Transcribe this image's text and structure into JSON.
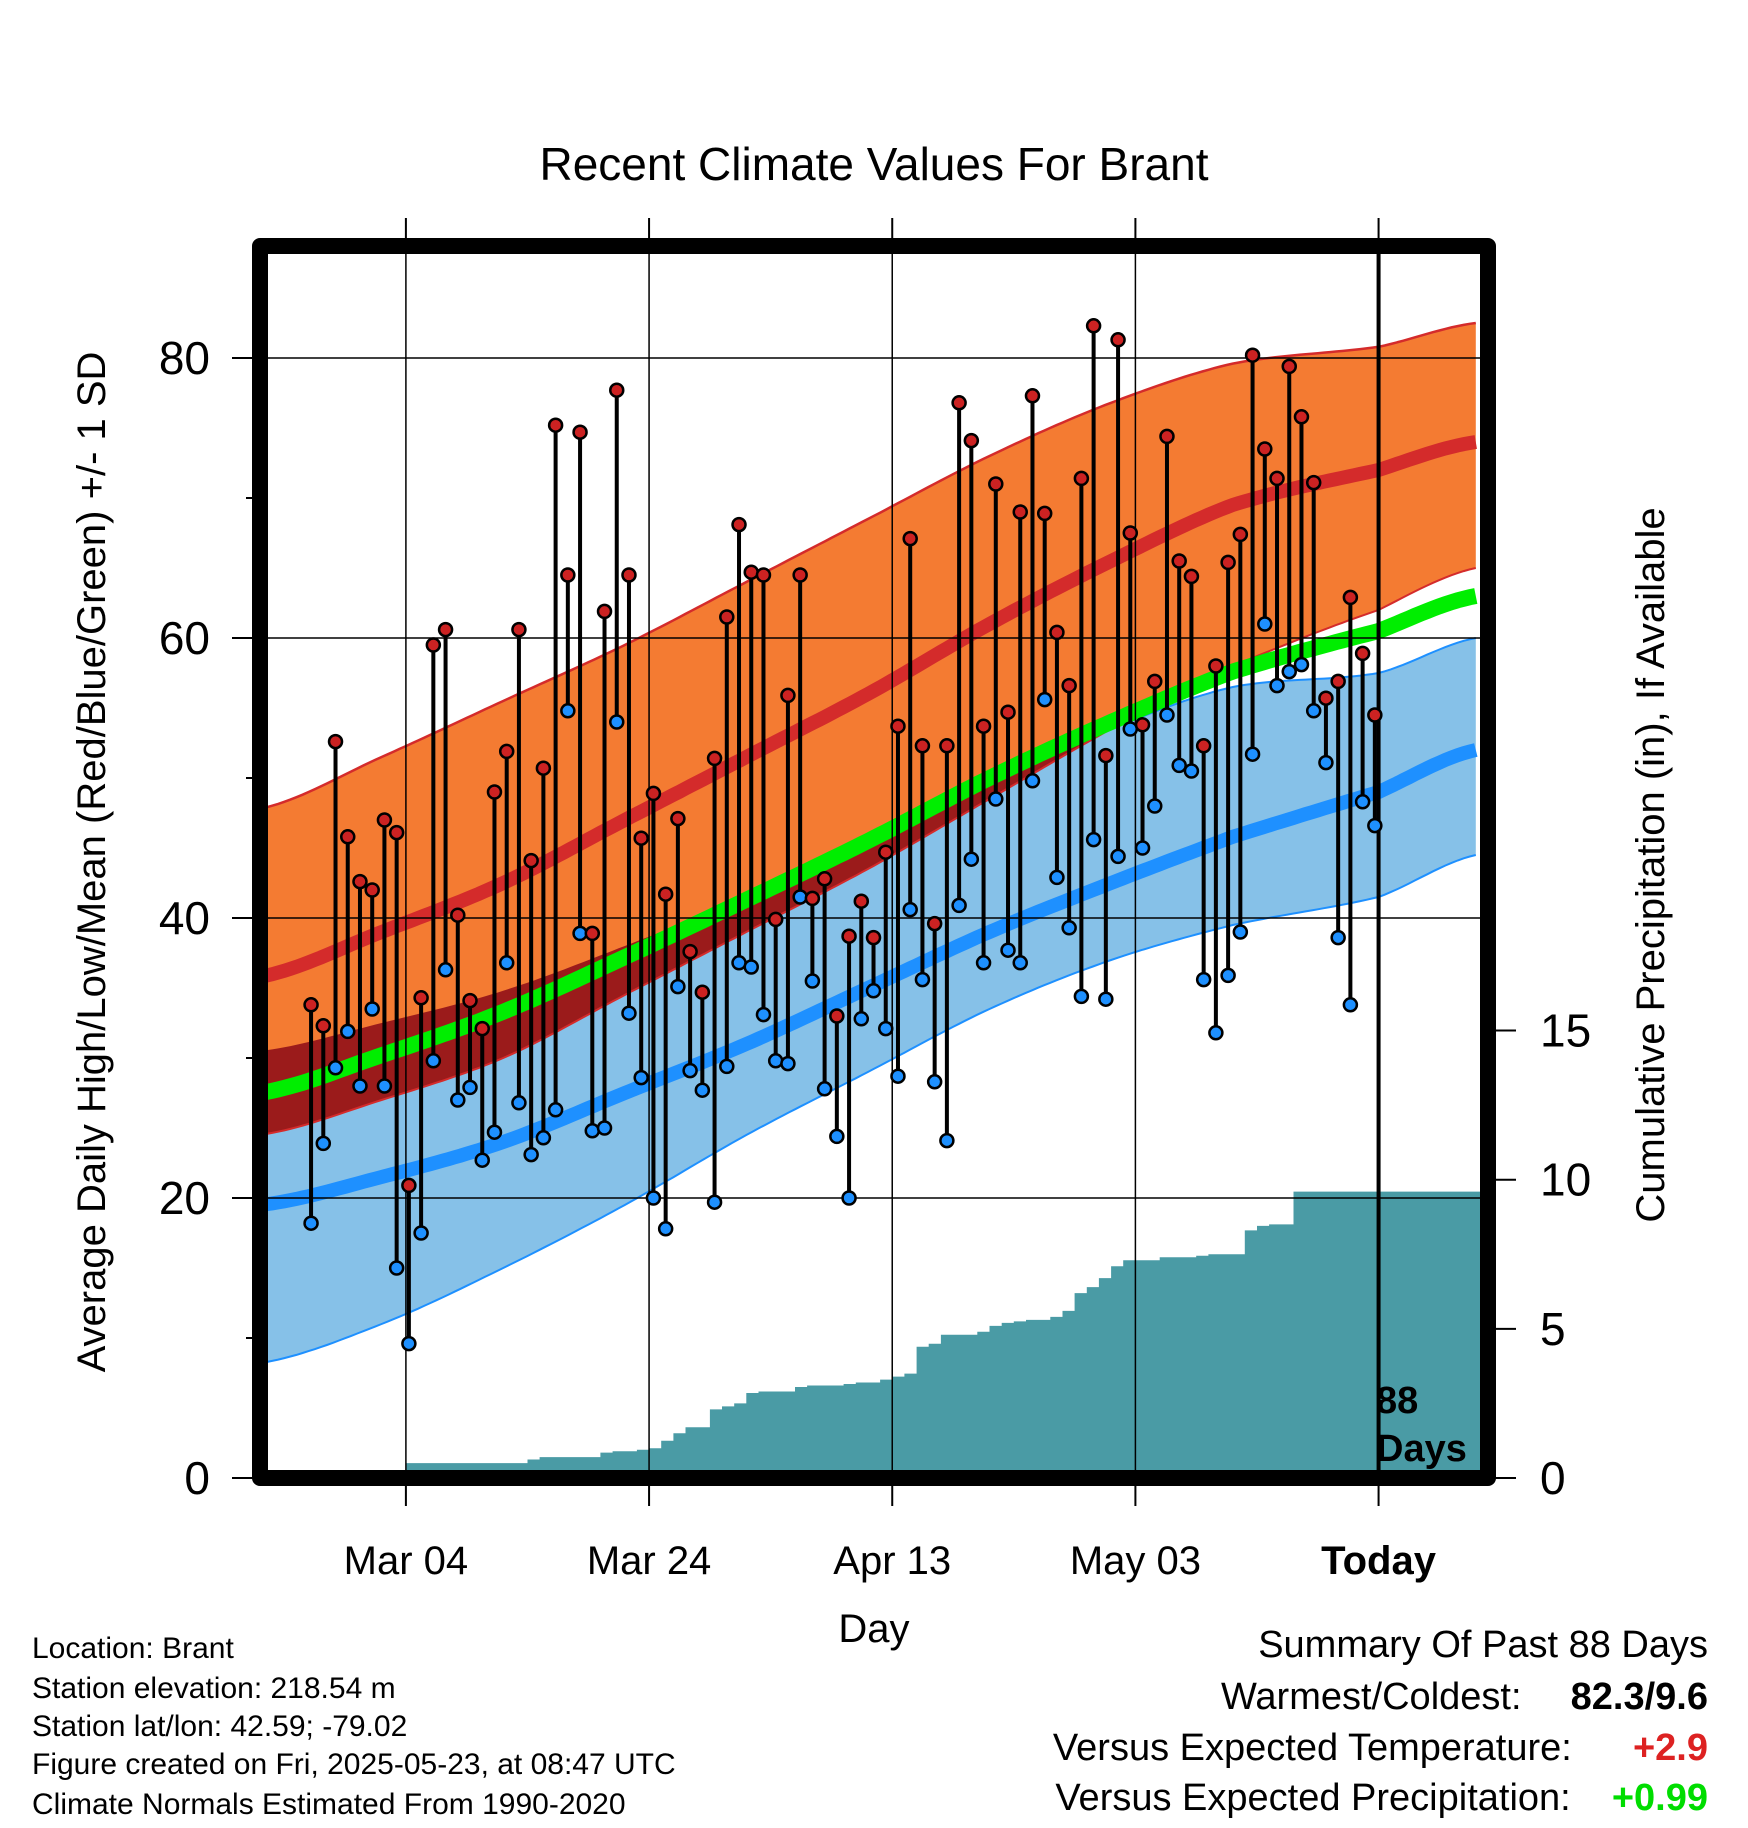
{
  "chart_data": {
    "type": "line",
    "title": "Recent Climate Values For Brant",
    "xlabel": "Day",
    "ylabel": "Average Daily High/Low/Mean (Red/Blue/Green) +/- 1 SD",
    "y2label": "Cumulative Precipitation (in), If Available",
    "x_tick_labels": [
      "Mar 04",
      "Mar 24",
      "Apr 13",
      "May 03",
      "Today"
    ],
    "x_tick_days": [
      12,
      32,
      52,
      72,
      92
    ],
    "y_ticks": [
      0,
      20,
      40,
      60,
      80
    ],
    "y2_ticks": [
      0,
      5,
      10,
      15
    ],
    "ylim": [
      0,
      88
    ],
    "y2lim": [
      0,
      41.3
    ],
    "xlim": [
      0,
      101
    ],
    "today_day": 92,
    "today_label_value": "88",
    "today_label_unit": "Days",
    "grid": true,
    "colors": {
      "high_band": "#f47b32",
      "high_mean": "#d42b2b",
      "high_band_edge": "#d42b2b",
      "low_band": "#86c1e8",
      "low_mean": "#1e90ff",
      "low_band_edge": "#1e90ff",
      "mean": "#00ee00",
      "overlap": "#9b1b1b",
      "precip": "#4a9ba5",
      "high_point": "#cc2222",
      "low_point": "#1e90ff"
    },
    "normal_days": [
      0,
      10,
      20,
      30,
      40,
      50,
      60,
      70,
      80,
      92,
      100
    ],
    "normal_high_mean": [
      35.8,
      39,
      42.5,
      47,
      51.5,
      56,
      61,
      65.5,
      69.5,
      72,
      74
    ],
    "normal_high_upper": [
      47.8,
      51.5,
      55.5,
      59.5,
      64,
      68.5,
      73,
      76.8,
      79.6,
      80.8,
      82.5
    ],
    "normal_high_lower": [
      24.5,
      27,
      30,
      34.5,
      39,
      43.5,
      48.5,
      53.5,
      58,
      62,
      65
    ],
    "normal_low_mean": [
      19.5,
      21.5,
      24,
      27.5,
      31,
      35,
      39,
      42.5,
      45.8,
      49,
      52
    ],
    "normal_low_upper": [
      30.5,
      32.5,
      34.8,
      38,
      41.5,
      45.5,
      49.5,
      53.5,
      56.5,
      57.5,
      60
    ],
    "normal_low_lower": [
      8.2,
      11,
      15,
      19.5,
      24.5,
      29,
      33.5,
      37,
      39.5,
      41.5,
      44.5
    ],
    "normal_mean": [
      27.5,
      30.2,
      33.3,
      37.2,
      41.3,
      45.5,
      50,
      54,
      57.6,
      60.5,
      63
    ],
    "daily_high": [
      33.8,
      32.3,
      52.6,
      45.8,
      42.6,
      42.0,
      47.0,
      46.1,
      20.9,
      34.3,
      59.5,
      60.6,
      40.2,
      34.1,
      32.1,
      49.0,
      51.9,
      60.6,
      44.1,
      50.7,
      75.2,
      64.5,
      74.7,
      38.9,
      61.9,
      77.7,
      64.5,
      45.7,
      48.9,
      41.7,
      47.1,
      37.6,
      34.7,
      51.4,
      61.5,
      68.1,
      64.7,
      64.5,
      39.9,
      55.9,
      64.5,
      41.4,
      42.8,
      33.0,
      38.7,
      41.2,
      38.6,
      44.7,
      53.7,
      67.1,
      52.3,
      39.6,
      52.3,
      76.8,
      74.1,
      53.7,
      71.0,
      54.7,
      69.0,
      77.3,
      68.9,
      60.4,
      56.6,
      71.4,
      82.3,
      51.6,
      81.3,
      67.5,
      53.8,
      56.9,
      74.4,
      65.5,
      64.4,
      52.3,
      58.0,
      65.4,
      67.4,
      80.2,
      73.5,
      71.4,
      79.4,
      75.8,
      71.1,
      55.7,
      56.9,
      62.9,
      58.9,
      54.5
    ],
    "daily_low": [
      18.2,
      23.9,
      29.3,
      31.9,
      28.0,
      33.5,
      28.0,
      15.0,
      9.6,
      17.5,
      29.8,
      36.3,
      27.0,
      27.9,
      22.7,
      24.7,
      36.8,
      26.8,
      23.1,
      24.3,
      26.3,
      54.8,
      38.9,
      24.8,
      25.0,
      54.0,
      33.2,
      28.6,
      20.0,
      17.8,
      35.1,
      29.1,
      27.7,
      19.7,
      29.4,
      36.8,
      36.5,
      33.1,
      29.8,
      29.6,
      41.5,
      35.5,
      27.8,
      24.4,
      20.0,
      32.8,
      34.8,
      32.1,
      28.7,
      40.6,
      35.6,
      28.3,
      24.1,
      40.9,
      44.2,
      36.8,
      48.5,
      37.7,
      36.8,
      49.8,
      55.6,
      42.9,
      39.3,
      34.4,
      45.6,
      34.2,
      44.4,
      53.5,
      45.0,
      48.0,
      54.5,
      50.9,
      50.5,
      35.6,
      31.8,
      35.9,
      39.0,
      51.7,
      61.0,
      56.6,
      57.6,
      58.1,
      54.8,
      51.1,
      38.6,
      33.8,
      48.3,
      46.6
    ],
    "cumulative_precip": [
      0,
      0,
      0,
      0,
      0,
      0,
      0.05,
      0.05,
      0.1,
      0.1,
      0.15,
      0.15,
      0.5,
      0.5,
      0.5,
      0.5,
      0.5,
      0.5,
      0.5,
      0.5,
      0.5,
      0.5,
      0.62,
      0.7,
      0.7,
      0.7,
      0.7,
      0.7,
      0.85,
      0.9,
      0.9,
      0.95,
      1.0,
      1.25,
      1.5,
      1.7,
      1.7,
      2.3,
      2.4,
      2.5,
      2.85,
      2.9,
      2.9,
      2.9,
      3.05,
      3.1,
      3.1,
      3.1,
      3.15,
      3.2,
      3.2,
      3.3,
      3.4,
      3.5,
      4.4,
      4.5,
      4.8,
      4.8,
      4.8,
      4.9,
      5.1,
      5.2,
      5.25,
      5.3,
      5.3,
      5.4,
      5.6,
      6.2,
      6.4,
      6.7,
      7.1,
      7.3,
      7.3,
      7.3,
      7.4,
      7.4,
      7.4,
      7.45,
      7.5,
      7.5,
      7.5,
      8.3,
      8.45,
      8.5,
      8.5,
      9.6,
      9.6,
      9.6,
      9.6,
      9.6,
      9.6,
      9.6,
      9.6,
      9.6,
      9.6,
      9.6,
      9.6,
      9.6,
      9.6,
      9.6,
      9.6
    ]
  },
  "info": {
    "location": "Location: Brant",
    "elevation": "Station elevation: 218.54 m",
    "latlon": "Station lat/lon: 42.59; -79.02",
    "created": "Figure created on Fri, 2025-05-23, at 08:47 UTC",
    "normals": "Climate Normals Estimated From 1990-2020"
  },
  "summary": {
    "heading": "Summary Of Past 88 Days",
    "warmest_label": "Warmest/Coldest:",
    "warmest_value": "82.3/9.6",
    "temp_label": "Versus Expected Temperature:",
    "temp_value": "+2.9",
    "temp_color": "#dd2222",
    "precip_label": "Versus Expected Precipitation:",
    "precip_value": "+0.99",
    "precip_color": "#00dd00"
  }
}
